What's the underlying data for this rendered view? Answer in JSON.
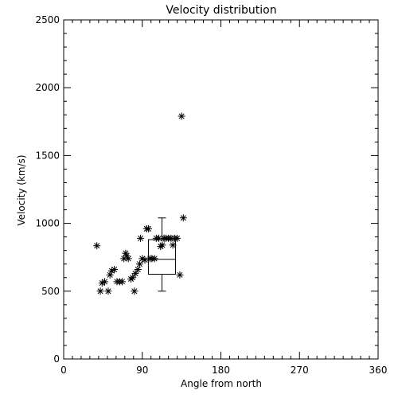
{
  "chart_data": {
    "type": "scatter",
    "title": "Velocity distribution",
    "xlabel": "Angle from north",
    "ylabel": "Velocity (km/s)",
    "xlim": [
      0,
      360
    ],
    "ylim": [
      0,
      2500
    ],
    "xticks": [
      0,
      90,
      180,
      270,
      360
    ],
    "yticks": [
      0,
      500,
      1000,
      1500,
      2000,
      2500
    ],
    "x_minor_step": 10,
    "y_minor_step": 100,
    "grid": false,
    "marker": "asterisk",
    "points": [
      [
        38,
        835
      ],
      [
        42,
        500
      ],
      [
        44,
        560
      ],
      [
        47,
        570
      ],
      [
        51,
        500
      ],
      [
        53,
        620
      ],
      [
        55,
        650
      ],
      [
        58,
        660
      ],
      [
        61,
        570
      ],
      [
        64,
        570
      ],
      [
        67,
        570
      ],
      [
        69,
        740
      ],
      [
        71,
        780
      ],
      [
        72,
        760
      ],
      [
        74,
        740
      ],
      [
        77,
        590
      ],
      [
        79,
        600
      ],
      [
        81,
        500
      ],
      [
        82,
        630
      ],
      [
        85,
        660
      ],
      [
        87,
        700
      ],
      [
        88,
        890
      ],
      [
        90,
        740
      ],
      [
        93,
        730
      ],
      [
        95,
        960
      ],
      [
        97,
        960
      ],
      [
        99,
        740
      ],
      [
        101,
        740
      ],
      [
        104,
        740
      ],
      [
        106,
        890
      ],
      [
        109,
        890
      ],
      [
        111,
        830
      ],
      [
        113,
        840
      ],
      [
        115,
        890
      ],
      [
        117,
        890
      ],
      [
        120,
        890
      ],
      [
        123,
        890
      ],
      [
        125,
        840
      ],
      [
        127,
        890
      ],
      [
        130,
        890
      ],
      [
        133,
        620
      ],
      [
        135,
        1790
      ],
      [
        137,
        1040
      ]
    ],
    "boxplot": {
      "x_left": 97,
      "x_right": 128,
      "whisker_low": 500,
      "q1": 625,
      "median": 735,
      "q3": 880,
      "whisker_high": 1040
    }
  }
}
